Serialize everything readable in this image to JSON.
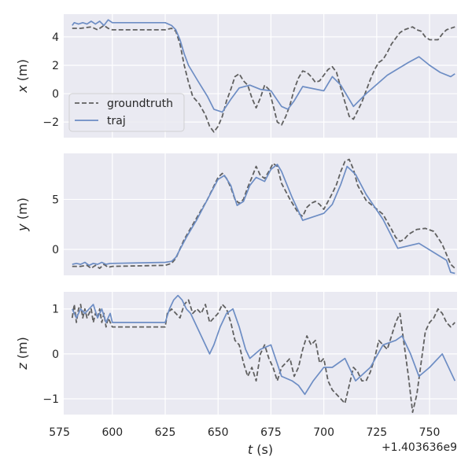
{
  "chart_data": {
    "type": "line",
    "shared_x": {
      "label_prefix": "t",
      "label_suffix": " (s)",
      "xlim": [
        577,
        763
      ],
      "ticks": [
        575,
        600,
        625,
        650,
        675,
        700,
        725,
        750
      ],
      "tick_labels": [
        "575",
        "600",
        "625",
        "650",
        "675",
        "700",
        "725",
        "750"
      ],
      "offset_label": "+1.403636e9"
    },
    "legend": {
      "location": "left",
      "entries": [
        "groundtruth",
        "traj"
      ]
    },
    "grid": true,
    "colors": {
      "background": "#eaeaf2",
      "grid": "#ffffff",
      "groundtruth": "#606060",
      "traj": "#6d8dc4",
      "text": "#262626"
    },
    "panels": [
      {
        "ylabel_var": "x",
        "ylabel_unit": " (m)",
        "ylim": [
          -3.1,
          5.6
        ],
        "yticks": [
          -2,
          0,
          2,
          4
        ],
        "ytick_labels": [
          "−2",
          "0",
          "2",
          "4"
        ],
        "series": [
          {
            "name": "groundtruth",
            "style": "dashed",
            "x": [
              581,
              585,
              590,
              593,
              596,
              598,
              600,
              610,
              625,
              628,
              630,
              632,
              634,
              636,
              638,
              641,
              644,
              646,
              648,
              650,
              652,
              654,
              656,
              658,
              660,
              662,
              664,
              666,
              668,
              670,
              672,
              674,
              676,
              678,
              680,
              682,
              684,
              686,
              688,
              690,
              692,
              694,
              696,
              698,
              700,
              702,
              704,
              706,
              708,
              710,
              712,
              714,
              716,
              718,
              720,
              722,
              724,
              726,
              728,
              730,
              732,
              734,
              736,
              738,
              740,
              742,
              744,
              746,
              748,
              750,
              752,
              754,
              756,
              758,
              760,
              762
            ],
            "y": [
              4.6,
              4.6,
              4.7,
              4.5,
              4.8,
              4.6,
              4.5,
              4.5,
              4.5,
              4.6,
              4.4,
              3.5,
              2.0,
              0.8,
              -0.2,
              -0.7,
              -1.5,
              -2.3,
              -2.7,
              -2.3,
              -1.6,
              -0.5,
              0.3,
              1.2,
              1.4,
              0.9,
              0.6,
              -0.3,
              -1.0,
              -0.3,
              0.6,
              0.3,
              -0.8,
              -2.0,
              -2.2,
              -1.6,
              -0.8,
              0.3,
              1.1,
              1.6,
              1.5,
              1.2,
              0.8,
              0.9,
              1.3,
              1.7,
              1.9,
              1.5,
              0.4,
              -0.6,
              -1.6,
              -1.8,
              -1.2,
              -0.6,
              0.2,
              1.0,
              1.7,
              2.2,
              2.4,
              2.9,
              3.5,
              3.9,
              4.3,
              4.5,
              4.6,
              4.7,
              4.5,
              4.4,
              4.0,
              3.8,
              3.8,
              3.8,
              4.2,
              4.5,
              4.6,
              4.7
            ]
          },
          {
            "name": "traj",
            "style": "solid",
            "x": [
              581,
              582,
              584,
              586,
              588,
              590,
              592,
              594,
              596,
              598,
              600,
              625,
              628,
              630,
              632,
              634,
              636,
              640,
              645,
              648,
              652,
              656,
              660,
              665,
              670,
              675,
              680,
              683,
              686,
              690,
              700,
              704,
              708,
              714,
              720,
              730,
              740,
              745,
              750,
              755,
              760,
              762
            ],
            "y": [
              4.8,
              5.0,
              4.9,
              5.0,
              4.9,
              5.1,
              4.9,
              5.1,
              4.8,
              5.2,
              5.0,
              5.0,
              4.8,
              4.5,
              3.8,
              2.8,
              2.0,
              1.0,
              -0.2,
              -1.1,
              -1.3,
              -0.4,
              0.4,
              0.6,
              0.3,
              0.2,
              -0.9,
              -1.1,
              -0.5,
              0.5,
              0.2,
              1.2,
              0.6,
              -0.9,
              0.0,
              1.3,
              2.2,
              2.6,
              2.0,
              1.5,
              1.2,
              1.4
            ]
          }
        ]
      },
      {
        "ylabel_var": "y",
        "ylabel_unit": " (m)",
        "ylim": [
          -2.6,
          9.6
        ],
        "yticks": [
          0,
          5
        ],
        "ytick_labels": [
          "0",
          "5"
        ],
        "series": [
          {
            "name": "groundtruth",
            "style": "dashed",
            "x": [
              581,
              585,
              588,
              590,
              592,
              594,
              596,
              598,
              600,
              625,
              628,
              630,
              634,
              640,
              645,
              650,
              652,
              654,
              656,
              658,
              660,
              662,
              664,
              666,
              668,
              670,
              672,
              674,
              676,
              678,
              680,
              684,
              688,
              690,
              692,
              694,
              696,
              698,
              700,
              702,
              704,
              706,
              708,
              710,
              712,
              714,
              716,
              720,
              724,
              728,
              732,
              734,
              736,
              738,
              740,
              744,
              748,
              752,
              756,
              760,
              762
            ],
            "y": [
              -1.7,
              -1.7,
              -1.6,
              -1.9,
              -1.6,
              -1.9,
              -1.5,
              -1.8,
              -1.7,
              -1.6,
              -1.4,
              -0.9,
              1.0,
              3.2,
              5.0,
              7.2,
              7.6,
              7.1,
              6.2,
              5.0,
              4.6,
              5.0,
              6.2,
              7.2,
              8.3,
              7.4,
              7.1,
              7.8,
              8.6,
              8.3,
              6.6,
              5.0,
              3.6,
              3.3,
              4.2,
              4.6,
              4.8,
              4.5,
              4.0,
              4.8,
              5.6,
              6.5,
              7.8,
              8.8,
              9.0,
              8.0,
              6.4,
              4.9,
              4.2,
              3.5,
              2.0,
              1.2,
              0.8,
              1.0,
              1.5,
              2.0,
              2.1,
              1.8,
              0.5,
              -1.5,
              -1.9
            ]
          },
          {
            "name": "traj",
            "style": "solid",
            "x": [
              581,
              583,
              585,
              587,
              589,
              591,
              593,
              595,
              597,
              599,
              600,
              625,
              628,
              630,
              635,
              640,
              645,
              650,
              653,
              656,
              659,
              662,
              665,
              668,
              672,
              675,
              678,
              680,
              685,
              690,
              700,
              704,
              708,
              711,
              715,
              720,
              728,
              735,
              745,
              758,
              760,
              762
            ],
            "y": [
              -1.5,
              -1.4,
              -1.5,
              -1.3,
              -1.6,
              -1.4,
              -1.5,
              -1.3,
              -1.5,
              -1.4,
              -1.4,
              -1.3,
              -1.2,
              -0.8,
              1.2,
              3.0,
              5.0,
              7.0,
              7.4,
              6.4,
              4.4,
              4.8,
              6.4,
              7.2,
              6.8,
              8.0,
              8.5,
              7.8,
              5.2,
              2.9,
              3.6,
              4.5,
              6.5,
              8.3,
              7.5,
              5.5,
              3.0,
              0.1,
              0.6,
              -1.1,
              -2.3,
              -2.4
            ]
          }
        ]
      },
      {
        "ylabel_var": "z",
        "ylabel_unit": " (m)",
        "ylim": [
          -1.35,
          1.38
        ],
        "yticks": [
          -1,
          0,
          1
        ],
        "ytick_labels": [
          "−1",
          "0",
          "1"
        ],
        "series": [
          {
            "name": "groundtruth",
            "style": "dashed",
            "x": [
              581,
              582,
              583,
              584,
              585,
              586,
              587,
              588,
              589,
              590,
              591,
              592,
              593,
              594,
              595,
              596,
              597,
              598,
              600,
              625,
              626,
              628,
              630,
              632,
              634,
              636,
              638,
              640,
              642,
              644,
              646,
              648,
              650,
              652,
              654,
              656,
              658,
              660,
              662,
              664,
              666,
              668,
              670,
              672,
              674,
              676,
              678,
              680,
              682,
              684,
              686,
              688,
              690,
              692,
              694,
              696,
              698,
              700,
              702,
              704,
              706,
              708,
              710,
              712,
              714,
              716,
              718,
              720,
              722,
              724,
              726,
              728,
              730,
              732,
              734,
              736,
              738,
              740,
              742,
              744,
              746,
              748,
              750,
              752,
              754,
              756,
              758,
              760,
              762
            ],
            "y": [
              0.8,
              1.1,
              0.7,
              1.0,
              1.1,
              0.8,
              1.0,
              0.8,
              0.9,
              1.0,
              0.7,
              0.9,
              0.8,
              1.0,
              0.7,
              0.9,
              0.6,
              0.8,
              0.6,
              0.6,
              0.9,
              1.0,
              0.9,
              0.8,
              1.1,
              1.2,
              0.9,
              1.0,
              0.9,
              1.1,
              0.7,
              0.8,
              0.9,
              1.1,
              1.0,
              0.7,
              0.3,
              0.2,
              -0.2,
              -0.5,
              -0.3,
              -0.6,
              0.0,
              0.2,
              -0.1,
              -0.3,
              -0.6,
              -0.3,
              -0.2,
              -0.1,
              -0.5,
              -0.3,
              0.1,
              0.4,
              0.2,
              0.3,
              -0.2,
              -0.1,
              -0.6,
              -0.8,
              -0.9,
              -1.0,
              -1.1,
              -0.7,
              -0.3,
              -0.4,
              -0.6,
              -0.6,
              -0.4,
              -0.1,
              0.3,
              0.2,
              0.1,
              0.4,
              0.7,
              0.9,
              0.2,
              -0.5,
              -1.3,
              -0.9,
              -0.2,
              0.5,
              0.7,
              0.8,
              1.0,
              0.9,
              0.7,
              0.6,
              0.7
            ]
          },
          {
            "name": "traj",
            "style": "solid",
            "x": [
              581,
              583,
              585,
              587,
              589,
              591,
              593,
              595,
              597,
              599,
              600,
              625,
              627,
              629,
              631,
              633,
              635,
              637,
              640,
              644,
              646,
              648,
              651,
              654,
              657,
              660,
              663,
              665,
              670,
              675,
              680,
              685,
              688,
              691,
              695,
              700,
              704,
              710,
              715,
              722,
              728,
              734,
              737,
              741,
              745,
              750,
              756,
              760,
              762
            ],
            "y": [
              1.0,
              0.8,
              1.0,
              0.9,
              1.0,
              1.1,
              0.8,
              1.0,
              0.7,
              0.9,
              0.7,
              0.7,
              1.0,
              1.2,
              1.3,
              1.2,
              1.0,
              0.9,
              0.6,
              0.2,
              0.0,
              0.2,
              0.6,
              0.9,
              1.0,
              0.6,
              0.1,
              -0.1,
              0.1,
              0.2,
              -0.5,
              -0.6,
              -0.7,
              -0.9,
              -0.6,
              -0.3,
              -0.3,
              -0.1,
              -0.6,
              -0.3,
              0.2,
              0.3,
              0.4,
              0.0,
              -0.5,
              -0.3,
              0.0,
              -0.4,
              -0.6
            ]
          }
        ]
      }
    ]
  }
}
